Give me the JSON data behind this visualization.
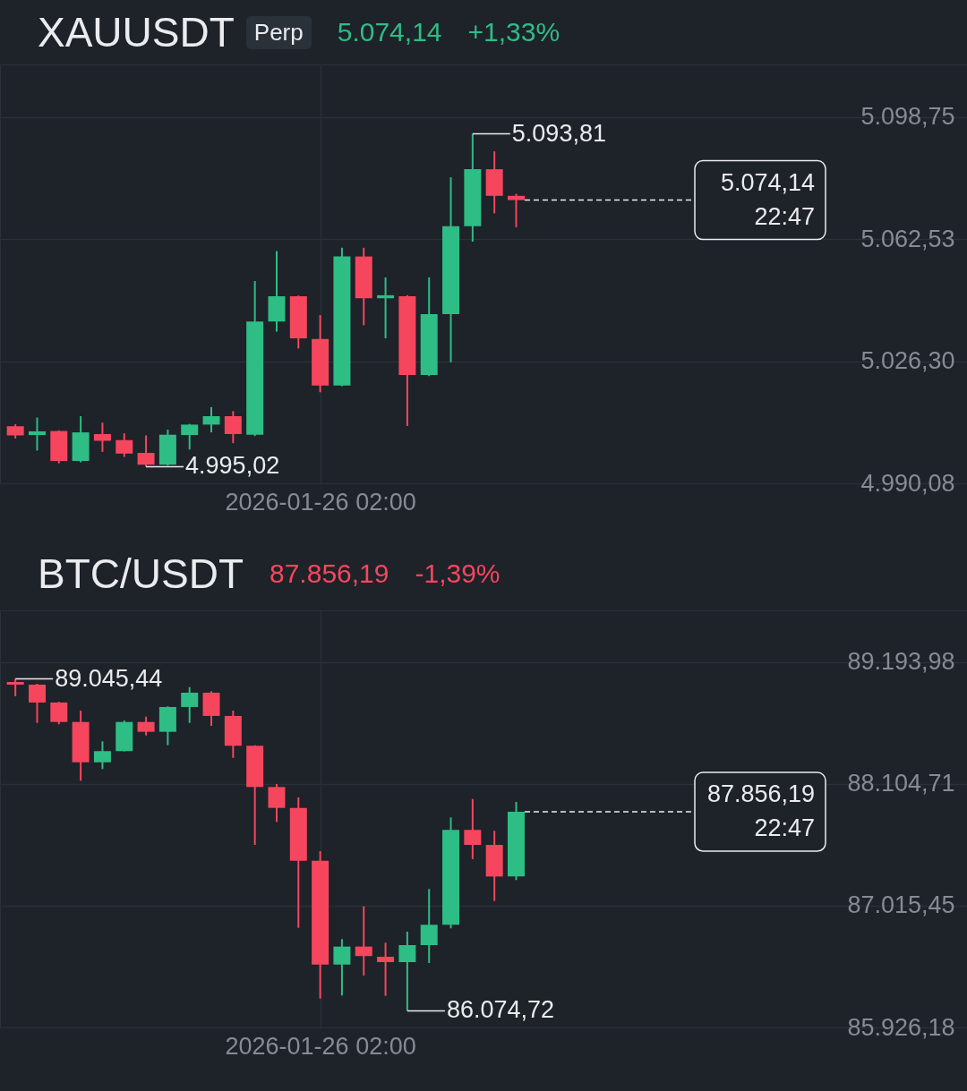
{
  "chart_data": [
    {
      "type": "candlestick",
      "title": "XAUUSDT",
      "subtitle": "Perp",
      "categories": [
        null,
        null,
        null,
        null,
        null,
        null,
        null,
        null,
        null,
        null,
        null,
        null,
        null,
        null,
        "2026-01-26 02:00",
        null,
        null,
        null,
        null,
        null,
        null,
        null,
        null,
        null,
        null,
        null,
        null,
        null,
        null,
        null,
        null,
        null,
        null,
        null,
        null,
        null,
        null,
        null,
        null,
        null,
        null,
        null,
        null,
        null
      ],
      "ohlc": [
        [
          5007.0,
          5007.6,
          5003.4,
          5004.3
        ],
        [
          5004.4,
          5009.6,
          4999.8,
          5005.5
        ],
        [
          5005.6,
          5005.8,
          4996.0,
          4996.7
        ],
        [
          4996.7,
          5010.0,
          4996.3,
          5005.2
        ],
        [
          5004.7,
          5008.1,
          4999.4,
          5002.7
        ],
        [
          5002.9,
          5004.9,
          4997.9,
          4998.9
        ],
        [
          4999.1,
          5004.3,
          4995.02,
          4995.6
        ],
        [
          4995.6,
          5006.0,
          4995.3,
          5004.5
        ],
        [
          5004.4,
          5007.7,
          5000.1,
          5007.5
        ],
        [
          5007.5,
          5012.7,
          5005.2,
          5010.0
        ],
        [
          5010.0,
          5011.5,
          5002.0,
          5004.7
        ],
        [
          5004.5,
          5050.1,
          5004.1,
          5038.1
        ],
        [
          5038.1,
          5059.0,
          5035.1,
          5045.6
        ],
        [
          5045.6,
          5045.8,
          5030.1,
          5033.1
        ],
        [
          5032.9,
          5040.0,
          5017.1,
          5019.1
        ],
        [
          5019.1,
          5060.0,
          5018.9,
          5057.4
        ],
        [
          5057.4,
          5060.0,
          5037.0,
          5045.0
        ],
        [
          5045.0,
          5051.2,
          5033.1,
          5045.9
        ],
        [
          5045.6,
          5045.9,
          5007.1,
          5022.2
        ],
        [
          5022.2,
          5051.2,
          5021.9,
          5040.3
        ],
        [
          5040.3,
          5080.9,
          5026.0,
          5066.4
        ],
        [
          5066.4,
          5093.81,
          5061.8,
          5083.3
        ],
        [
          5083.3,
          5088.6,
          5070.2,
          5075.4
        ],
        [
          5075.4,
          5076.0,
          5066.1,
          5074.14
        ],
        null,
        null,
        null,
        null,
        null,
        null,
        null,
        null,
        null,
        null,
        null,
        null,
        null,
        null,
        null,
        null,
        null,
        null,
        null,
        null
      ],
      "colors": [
        "#f6465d",
        "#2ebd85",
        "#f6465d",
        "#2ebd85",
        "#f6465d",
        "#f6465d",
        "#f6465d",
        "#2ebd85",
        "#2ebd85",
        "#2ebd85",
        "#f6465d",
        "#2ebd85",
        "#2ebd85",
        "#f6465d",
        "#f6465d",
        "#2ebd85",
        "#f6465d",
        "#2ebd85",
        "#f6465d",
        "#2ebd85",
        "#2ebd85",
        "#2ebd85",
        "#f6465d",
        "#f6465d",
        null,
        null,
        null,
        null,
        null,
        null,
        null,
        null,
        null,
        null,
        null,
        null,
        null,
        null,
        null,
        null,
        null,
        null,
        null,
        null
      ],
      "ylim": [
        4990.08,
        5114.4
      ],
      "yticks": [
        {
          "value": 5098.75,
          "label": "5.098,75"
        },
        {
          "value": 5062.53,
          "label": "5.062,53"
        },
        {
          "value": 5026.3,
          "label": "5.026,30"
        },
        {
          "value": 4990.08,
          "label": "4.990,08"
        }
      ],
      "grid": true,
      "ref_lines": [
        {
          "axis": "y",
          "value": 5074.14,
          "label": "5.074,14\n22:47",
          "color": "#eaecef",
          "line_style": "dashed"
        }
      ],
      "annotations": [
        "5.074,14",
        "+1,33%",
        "5.093,81",
        "4.995,02"
      ]
    },
    {
      "type": "candlestick",
      "title": "BTC/USDT",
      "categories": [
        null,
        null,
        null,
        null,
        null,
        null,
        null,
        null,
        null,
        null,
        null,
        null,
        null,
        null,
        "2026-01-26 02:00",
        null,
        null,
        null,
        null,
        null,
        null,
        null,
        null,
        null,
        null,
        null,
        null,
        null,
        null,
        null,
        null,
        null,
        null,
        null,
        null,
        null,
        null,
        null,
        null,
        null,
        null,
        null,
        null,
        null
      ],
      "ohlc": [
        [
          89018,
          89045.44,
          88890,
          88994
        ],
        [
          88994,
          89002,
          88652,
          88834
        ],
        [
          88834,
          88841,
          88639,
          88660
        ],
        [
          88660,
          88762,
          88134,
          88299
        ],
        [
          88299,
          88487,
          88239,
          88399
        ],
        [
          88399,
          88673,
          88396,
          88660
        ],
        [
          88660,
          88708,
          88540,
          88572
        ],
        [
          88572,
          88800,
          88452,
          88794
        ],
        [
          88794,
          88972,
          88652,
          88922
        ],
        [
          88922,
          88935,
          88625,
          88714
        ],
        [
          88714,
          88762,
          88339,
          88447
        ],
        [
          88447,
          88452,
          87560,
          88078
        ],
        [
          88078,
          88105,
          87766,
          87891
        ],
        [
          87891,
          87985,
          86818,
          87418
        ],
        [
          87418,
          87504,
          86185,
          86489
        ],
        [
          86489,
          86717,
          86212,
          86650
        ],
        [
          86650,
          87010,
          86391,
          86565
        ],
        [
          86559,
          86685,
          86209,
          86511
        ],
        [
          86511,
          86783,
          86074.72,
          86663
        ],
        [
          86663,
          87165,
          86503,
          86845
        ],
        [
          86845,
          87806,
          86813,
          87694
        ],
        [
          87694,
          87971,
          87432,
          87560
        ],
        [
          87560,
          87686,
          87058,
          87277
        ],
        [
          87277,
          87945,
          87245,
          87856.19
        ],
        null,
        null,
        null,
        null,
        null,
        null,
        null,
        null,
        null,
        null,
        null,
        null,
        null,
        null,
        null,
        null,
        null,
        null,
        null,
        null
      ],
      "colors": [
        "#f6465d",
        "#f6465d",
        "#f6465d",
        "#f6465d",
        "#2ebd85",
        "#2ebd85",
        "#f6465d",
        "#2ebd85",
        "#2ebd85",
        "#f6465d",
        "#f6465d",
        "#f6465d",
        "#f6465d",
        "#f6465d",
        "#f6465d",
        "#2ebd85",
        "#f6465d",
        "#f6465d",
        "#2ebd85",
        "#2ebd85",
        "#2ebd85",
        "#f6465d",
        "#f6465d",
        "#2ebd85",
        null,
        null,
        null,
        null,
        null,
        null,
        null,
        null,
        null,
        null,
        null,
        null,
        null,
        null,
        null,
        null,
        null,
        null,
        null,
        null
      ],
      "ylim": [
        85926.18,
        89658.5
      ],
      "yticks": [
        {
          "value": 89193.98,
          "label": "89.193,98"
        },
        {
          "value": 88104.71,
          "label": "88.104,71"
        },
        {
          "value": 87015.45,
          "label": "87.015,45"
        },
        {
          "value": 85926.18,
          "label": "85.926,18"
        }
      ],
      "grid": true,
      "ref_lines": [
        {
          "axis": "y",
          "value": 87856.19,
          "label": "87.856,19\n22:47",
          "color": "#eaecef",
          "line_style": "dashed"
        }
      ],
      "annotations": [
        "87.856,19",
        "-1,39%",
        "89.045,44",
        "86.074,72"
      ]
    }
  ]
}
